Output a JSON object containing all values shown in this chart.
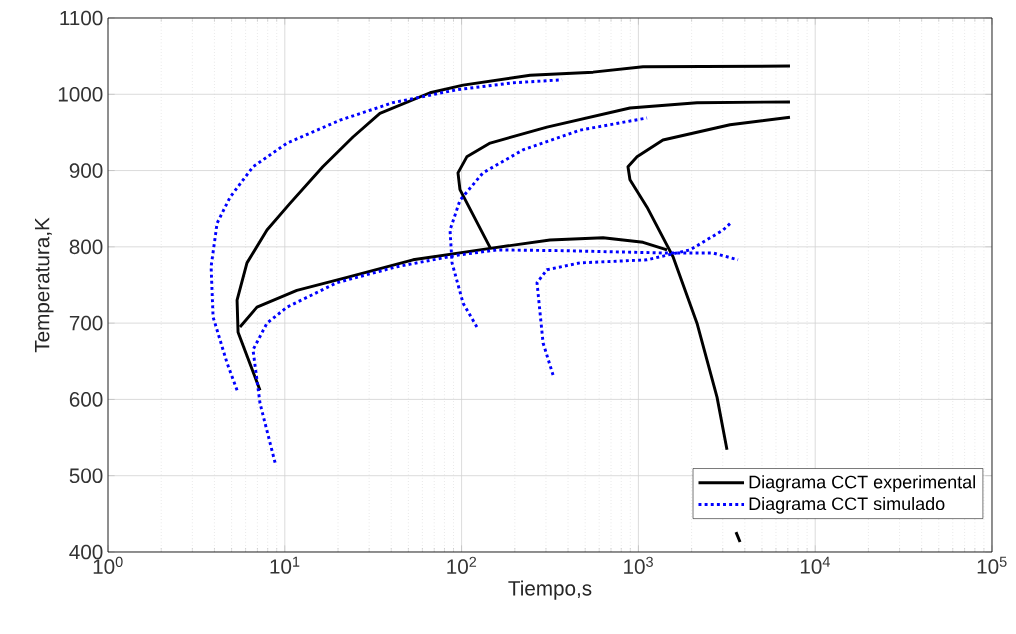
{
  "chart_data": {
    "type": "line",
    "xlabel": "Tiempo,s",
    "ylabel": "Temperatura,K",
    "log": "x",
    "grid": true,
    "legend": "bottom right",
    "xlim": [
      1,
      100000
    ],
    "ylim": [
      400,
      1100
    ],
    "xticks": [
      {
        "value": 1,
        "label": "10$^{0}$"
      },
      {
        "value": 10,
        "label": "10$^{1}$"
      },
      {
        "value": 100,
        "label": "10$^{2}$"
      },
      {
        "value": 1000,
        "label": "10$^{3}$"
      },
      {
        "value": 10000,
        "label": "10$^{4}$"
      },
      {
        "value": 100000,
        "label": "10$^{5}$"
      }
    ],
    "yticks": [
      400,
      500,
      600,
      700,
      800,
      900,
      1000,
      1100
    ],
    "series": [
      {
        "name": "Diagrama CCT experimental",
        "color": "#000000",
        "line_style": "solid",
        "x": [
          7.24,
          5.44,
          5.37,
          6.11,
          7.93,
          10.7,
          16.4,
          24.3,
          34.5,
          66.3,
          102,
          244,
          554,
          1062,
          7200
        ],
        "values": [
          612,
          688,
          730,
          779,
          822,
          857,
          905,
          944,
          975,
          1002,
          1012,
          1025,
          1029,
          1036,
          1037
        ]
      },
      {
        "color": "#000000",
        "line_style": "solid",
        "x": [
          5.58,
          6.96,
          11.7,
          22.5,
          53.1,
          145,
          316,
          631,
          1062,
          1452
        ],
        "values": [
          695,
          721,
          743,
          760,
          783,
          798,
          809,
          812,
          806,
          796
        ]
      },
      {
        "color": "#000000",
        "line_style": "solid",
        "x": [
          145,
          97.9,
          95.4,
          107,
          145,
          304,
          896,
          2145,
          7200
        ],
        "values": [
          799,
          875,
          897,
          918,
          936,
          957,
          982,
          989,
          990
        ]
      },
      {
        "color": "#000000",
        "line_style": "solid",
        "x": [
          3758,
          3565,
          3400,
          3170,
          2784,
          2145,
          1570,
          1119,
          896,
          873,
          982,
          1377,
          3297,
          7200
        ],
        "values": [
          413,
          426,
          null,
          534,
          603,
          700,
          787,
          852,
          888,
          905,
          918,
          940,
          960,
          970
        ]
      },
      {
        "name": "Diagrama CCT simulado",
        "color": "#0000ff",
        "line_style": "dotted",
        "x": [
          5.37,
          4.71,
          3.93,
          3.83,
          4.14,
          4.9,
          6.61,
          10.3,
          20.5,
          40.9,
          94.2,
          195,
          370
        ],
        "values": [
          612,
          648,
          708,
          774,
          831,
          865,
          905,
          936,
          966,
          989,
          1006,
          1015,
          1019
        ]
      },
      {
        "color": "#0000ff",
        "line_style": "dotted",
        "x": [
          8.81,
          7.24,
          6.61,
          7.93,
          10.3,
          19.7,
          43.1,
          94.2,
          159,
          375,
          1377,
          2642,
          3660
        ],
        "values": [
          517,
          595,
          665,
          700,
          721,
          753,
          774,
          789,
          796,
          795,
          792,
          792,
          783
        ]
      },
      {
        "color": "#0000ff",
        "line_style": "dotted",
        "x": [
          122,
          102,
          88.3,
          86,
          97.9,
          132,
          222,
          468,
          1119
        ],
        "values": [
          695,
          726,
          779,
          822,
          861,
          897,
          927,
          953,
          969
        ]
      },
      {
        "color": "#0000ff",
        "line_style": "dotted",
        "x": [
          329,
          289,
          267,
          304,
          468,
          1119,
          1959,
          3013,
          3383
        ],
        "values": [
          632,
          674,
          753,
          770,
          779,
          783,
          796,
          822,
          833
        ]
      }
    ]
  }
}
